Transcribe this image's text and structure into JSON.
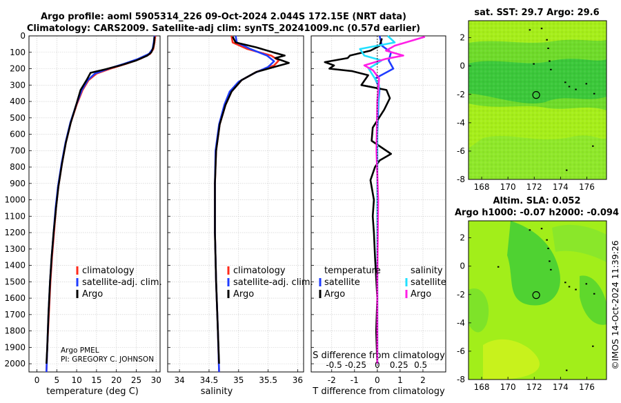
{
  "header": {
    "line1": "Argo profile: aoml 5905314_226 09-Oct-2024 2.044S 172.15E (NRT data)",
    "line2": "Climatology: CARS2009. Satellite-adj clim: synTS_20241009.nc (0.57d earlier)"
  },
  "colors": {
    "climatology": "#ff2a1a",
    "satellite_adj": "#1f3cff",
    "argo": "#000000",
    "sal_satellite": "#22e0ff",
    "sal_argo": "#ff1fe6"
  },
  "depth_axis": {
    "ticks": [
      "0",
      "100",
      "200",
      "300",
      "400",
      "500",
      "600",
      "700",
      "800",
      "900",
      "1000",
      "1100",
      "1200",
      "1300",
      "1400",
      "1500",
      "1600",
      "1700",
      "1800",
      "1900",
      "2000"
    ]
  },
  "chart_data": [
    {
      "type": "line",
      "name": "temperature-profile",
      "xlabel": "temperature (deg C)",
      "xlim": [
        -2,
        31
      ],
      "ylim": [
        2050,
        0
      ],
      "xticks": [
        "0",
        "5",
        "10",
        "15",
        "20",
        "25",
        "30"
      ],
      "legend": [
        "climatology",
        "satellite-adj. clim.",
        "Argo"
      ],
      "annotation_line1": "Argo PMEL",
      "annotation_line2": "PI: GREGORY C. JOHNSON",
      "series": [
        {
          "name": "climatology",
          "points": [
            [
              29.8,
              0
            ],
            [
              29.6,
              40
            ],
            [
              29.3,
              80
            ],
            [
              28.5,
              110
            ],
            [
              26,
              140
            ],
            [
              22.5,
              170
            ],
            [
              18.5,
              200
            ],
            [
              15,
              230
            ],
            [
              13,
              270
            ],
            [
              11.5,
              330
            ],
            [
              10,
              420
            ],
            [
              8.5,
              530
            ],
            [
              7.3,
              650
            ],
            [
              6.3,
              780
            ],
            [
              5.4,
              920
            ],
            [
              4.8,
              1050
            ],
            [
              4.3,
              1200
            ],
            [
              3.8,
              1350
            ],
            [
              3.4,
              1500
            ],
            [
              3.0,
              1700
            ],
            [
              2.6,
              1900
            ],
            [
              2.4,
              2050
            ]
          ]
        },
        {
          "name": "satellite-adj. clim.",
          "points": [
            [
              29.6,
              0
            ],
            [
              29.4,
              40
            ],
            [
              29.1,
              80
            ],
            [
              28.2,
              110
            ],
            [
              25.5,
              140
            ],
            [
              22,
              170
            ],
            [
              18,
              200
            ],
            [
              14.6,
              230
            ],
            [
              12.8,
              270
            ],
            [
              11.3,
              330
            ],
            [
              9.9,
              420
            ],
            [
              8.4,
              530
            ],
            [
              7.2,
              650
            ],
            [
              6.2,
              780
            ],
            [
              5.3,
              920
            ],
            [
              4.7,
              1050
            ],
            [
              4.2,
              1200
            ],
            [
              3.7,
              1350
            ],
            [
              3.3,
              1500
            ],
            [
              2.9,
              1700
            ],
            [
              2.6,
              1900
            ],
            [
              2.4,
              2050
            ]
          ]
        },
        {
          "name": "Argo",
          "points": [
            [
              29.6,
              5
            ],
            [
              29.5,
              40
            ],
            [
              29.3,
              70
            ],
            [
              28.8,
              100
            ],
            [
              27.8,
              120
            ],
            [
              25,
              150
            ],
            [
              21,
              180
            ],
            [
              17,
              205
            ],
            [
              13.5,
              225
            ],
            [
              12.5,
              270
            ],
            [
              11,
              330
            ],
            [
              9.9,
              420
            ],
            [
              8.5,
              530
            ],
            [
              7.3,
              650
            ],
            [
              6.3,
              780
            ],
            [
              5.4,
              920
            ],
            [
              4.8,
              1050
            ],
            [
              4.2,
              1200
            ],
            [
              3.7,
              1350
            ],
            [
              3.3,
              1500
            ],
            [
              2.9,
              1700
            ],
            [
              2.6,
              1900
            ],
            [
              2.4,
              2000
            ]
          ]
        }
      ]
    },
    {
      "type": "line",
      "name": "salinity-profile",
      "xlabel": "salinity",
      "xlim": [
        33.8,
        36.1
      ],
      "ylim": [
        2050,
        0
      ],
      "xticks": [
        "34",
        "34.5",
        "35",
        "35.5",
        "36"
      ],
      "legend": [
        "climatology",
        "satellite-adj. clim.",
        "Argo"
      ],
      "series": [
        {
          "name": "climatology",
          "points": [
            [
              34.88,
              0
            ],
            [
              34.9,
              40
            ],
            [
              35.15,
              80
            ],
            [
              35.55,
              120
            ],
            [
              35.68,
              150
            ],
            [
              35.6,
              180
            ],
            [
              35.3,
              220
            ],
            [
              35.05,
              270
            ],
            [
              34.88,
              340
            ],
            [
              34.78,
              420
            ],
            [
              34.68,
              540
            ],
            [
              34.62,
              700
            ],
            [
              34.6,
              900
            ],
            [
              34.6,
              1200
            ],
            [
              34.62,
              1500
            ],
            [
              34.65,
              1800
            ],
            [
              34.67,
              2050
            ]
          ]
        },
        {
          "name": "satellite-adj. clim.",
          "points": [
            [
              34.95,
              0
            ],
            [
              34.97,
              40
            ],
            [
              35.2,
              80
            ],
            [
              35.48,
              120
            ],
            [
              35.6,
              155
            ],
            [
              35.5,
              190
            ],
            [
              35.25,
              230
            ],
            [
              35.0,
              280
            ],
            [
              34.85,
              340
            ],
            [
              34.76,
              420
            ],
            [
              34.67,
              540
            ],
            [
              34.61,
              700
            ],
            [
              34.6,
              900
            ],
            [
              34.6,
              1200
            ],
            [
              34.62,
              1500
            ],
            [
              34.65,
              1800
            ],
            [
              34.67,
              2050
            ]
          ]
        },
        {
          "name": "Argo",
          "points": [
            [
              34.9,
              5
            ],
            [
              34.95,
              40
            ],
            [
              35.3,
              70
            ],
            [
              35.58,
              100
            ],
            [
              35.78,
              120
            ],
            [
              35.62,
              135
            ],
            [
              35.85,
              165
            ],
            [
              35.6,
              190
            ],
            [
              35.3,
              220
            ],
            [
              35.05,
              270
            ],
            [
              34.88,
              340
            ],
            [
              34.78,
              420
            ],
            [
              34.68,
              540
            ],
            [
              34.62,
              700
            ],
            [
              34.6,
              900
            ],
            [
              34.6,
              1200
            ],
            [
              34.62,
              1500
            ],
            [
              34.65,
              1800
            ],
            [
              34.67,
              2000
            ]
          ]
        }
      ]
    },
    {
      "type": "line",
      "name": "difference-profile",
      "xlabel": "T difference from climatology",
      "xlabel_top": "S difference from climatology",
      "xlim": [
        -2.9,
        3.0
      ],
      "ylim": [
        2050,
        0
      ],
      "xticks": [
        "-2",
        "-1",
        "0",
        "1",
        "2"
      ],
      "xticks_top": [
        "-0.5",
        "-0.25",
        "0",
        "0.25",
        "0.5"
      ],
      "legend_left_title": "temperature",
      "legend_right_title": "salinity",
      "legend_left": [
        "satellite",
        "Argo"
      ],
      "legend_right": [
        "satellite",
        "Argo"
      ],
      "series": [
        {
          "name": "temperature satellite",
          "points": [
            [
              0.1,
              0
            ],
            [
              0.2,
              60
            ],
            [
              0.6,
              100
            ],
            [
              0.5,
              150
            ],
            [
              0.7,
              200
            ],
            [
              0.3,
              230
            ],
            [
              -0.1,
              260
            ],
            [
              0.1,
              320
            ],
            [
              0.05,
              400
            ],
            [
              0.0,
              600
            ],
            [
              0.0,
              1000
            ],
            [
              0.0,
              1500
            ],
            [
              0.0,
              2000
            ]
          ]
        },
        {
          "name": "temperature Argo",
          "points": [
            [
              0.2,
              15
            ],
            [
              0.1,
              60
            ],
            [
              -0.3,
              90
            ],
            [
              -1.2,
              120
            ],
            [
              -1.3,
              135
            ],
            [
              -2.3,
              160
            ],
            [
              -1.9,
              180
            ],
            [
              -2.1,
              200
            ],
            [
              -1.1,
              215
            ],
            [
              -0.4,
              240
            ],
            [
              -0.7,
              300
            ],
            [
              0.4,
              330
            ],
            [
              0.55,
              380
            ],
            [
              0.3,
              450
            ],
            [
              -0.2,
              560
            ],
            [
              -0.25,
              640
            ],
            [
              0.6,
              720
            ],
            [
              0.1,
              760
            ],
            [
              -0.1,
              800
            ],
            [
              -0.3,
              880
            ],
            [
              -0.15,
              1000
            ],
            [
              -0.2,
              1100
            ],
            [
              -0.15,
              1200
            ],
            [
              -0.1,
              1350
            ],
            [
              0.0,
              1600
            ],
            [
              -0.05,
              1800
            ],
            [
              0.0,
              2000
            ]
          ]
        },
        {
          "name": "salinity satellite",
          "points": [
            [
              0.12,
              0
            ],
            [
              0.2,
              40
            ],
            [
              -0.2,
              80
            ],
            [
              -0.15,
              120
            ],
            [
              0.05,
              150
            ],
            [
              -0.1,
              200
            ],
            [
              0.02,
              300
            ],
            [
              0.0,
              500
            ],
            [
              0.0,
              1000
            ],
            [
              0.0,
              1500
            ],
            [
              0.0,
              2000
            ]
          ]
        },
        {
          "name": "salinity Argo",
          "points": [
            [
              0.55,
              5
            ],
            [
              0.2,
              60
            ],
            [
              0.1,
              90
            ],
            [
              0.3,
              120
            ],
            [
              0.1,
              140
            ],
            [
              -0.15,
              180
            ],
            [
              -0.05,
              210
            ],
            [
              0.02,
              260
            ],
            [
              0.0,
              400
            ],
            [
              -0.01,
              700
            ],
            [
              0.01,
              1000
            ],
            [
              0.0,
              1500
            ],
            [
              0.0,
              2000
            ]
          ]
        }
      ]
    },
    {
      "type": "heatmap",
      "name": "sst-map",
      "title": "sat. SST: 29.7 Argo: 29.6",
      "xlim": [
        167,
        177.5
      ],
      "ylim": [
        -8,
        3.2
      ],
      "xticks": [
        "168",
        "170",
        "172",
        "174",
        "176"
      ],
      "yticks": [
        "2",
        "0",
        "-2",
        "-4",
        "-6",
        "-8"
      ],
      "marker": [
        172.15,
        -2.04
      ],
      "islands": [
        [
          171.6,
          2.6
        ],
        [
          172.5,
          2.7
        ],
        [
          172.9,
          1.9
        ],
        [
          173.0,
          1.3
        ],
        [
          173.1,
          0.4
        ],
        [
          173.2,
          -0.2
        ],
        [
          174.3,
          -1.1
        ],
        [
          174.6,
          -1.4
        ],
        [
          175.1,
          -1.6
        ],
        [
          175.9,
          -1.2
        ],
        [
          176.5,
          -1.9
        ],
        [
          176.4,
          -5.6
        ],
        [
          174.4,
          -7.3
        ],
        [
          171.9,
          0.2
        ]
      ]
    },
    {
      "type": "heatmap",
      "name": "sla-map",
      "title": "Altim. SLA: 0.052",
      "title2": "Argo h1000: -0.07 h2000: -0.094",
      "xlim": [
        167,
        177.5
      ],
      "ylim": [
        -8,
        3.2
      ],
      "xticks": [
        "168",
        "170",
        "172",
        "174",
        "176"
      ],
      "yticks": [
        "2",
        "0",
        "-2",
        "-4",
        "-6",
        "-8"
      ],
      "marker": [
        172.15,
        -2.04
      ],
      "islands": [
        [
          171.6,
          2.6
        ],
        [
          172.5,
          2.7
        ],
        [
          172.9,
          1.9
        ],
        [
          173.0,
          1.3
        ],
        [
          173.1,
          0.4
        ],
        [
          173.2,
          -0.2
        ],
        [
          174.3,
          -1.1
        ],
        [
          174.6,
          -1.4
        ],
        [
          175.1,
          -1.6
        ],
        [
          175.9,
          -1.2
        ],
        [
          176.5,
          -1.9
        ],
        [
          176.4,
          -5.6
        ],
        [
          174.4,
          -7.3
        ],
        [
          169.2,
          0.0
        ]
      ]
    }
  ],
  "footer": {
    "timestamp": "©IMOS 14-Oct-2024 11:39:26"
  }
}
